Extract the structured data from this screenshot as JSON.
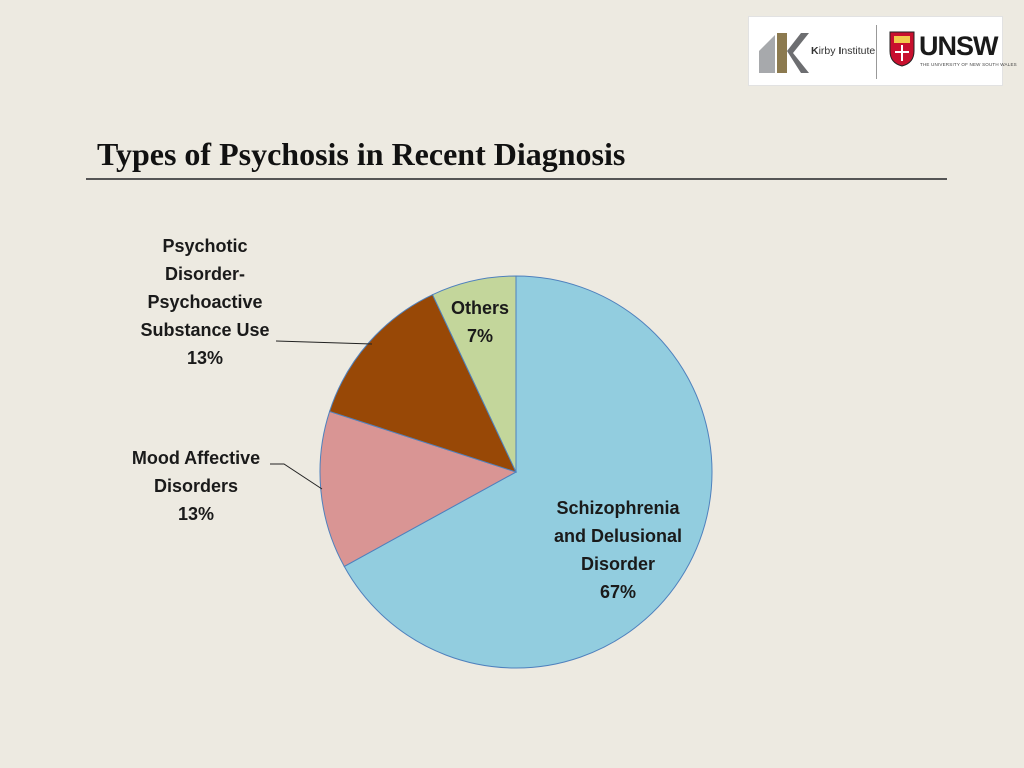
{
  "slide": {
    "title": "Types of Psychosis in Recent Diagnosis"
  },
  "logos": {
    "kirby": {
      "text_k": "K",
      "text_irby": "irby ",
      "text_i": "I",
      "text_nstitute": "nstitute"
    },
    "unsw": {
      "name": "UNSW",
      "subtitle": "THE UNIVERSITY OF NEW SOUTH WALES"
    }
  },
  "chart_data": {
    "type": "pie",
    "title": "Types of Psychosis in Recent Diagnosis",
    "slices": [
      {
        "label": "Schizophrenia and Delusional Disorder",
        "lines": [
          "Schizophrenia",
          "and Delusional",
          "Disorder"
        ],
        "value": 67,
        "value_label": "67%",
        "color": "#92cddf"
      },
      {
        "label": "Mood Affective Disorders",
        "lines": [
          "Mood Affective",
          "Disorders"
        ],
        "value": 13,
        "value_label": "13%",
        "color": "#d99594"
      },
      {
        "label": "Psychotic Disorder-Psychoactive Substance Use",
        "lines": [
          "Psychotic",
          "Disorder-",
          "Psychoactive",
          "Substance Use"
        ],
        "value": 13,
        "value_label": "13%",
        "color": "#984806"
      },
      {
        "label": "Others",
        "lines": [
          "Others"
        ],
        "value": 7,
        "value_label": "7%",
        "color": "#c3d69b"
      }
    ],
    "start": "12 o'clock",
    "direction": "clockwise",
    "legend": "none",
    "border_color": "#4f81bd"
  }
}
